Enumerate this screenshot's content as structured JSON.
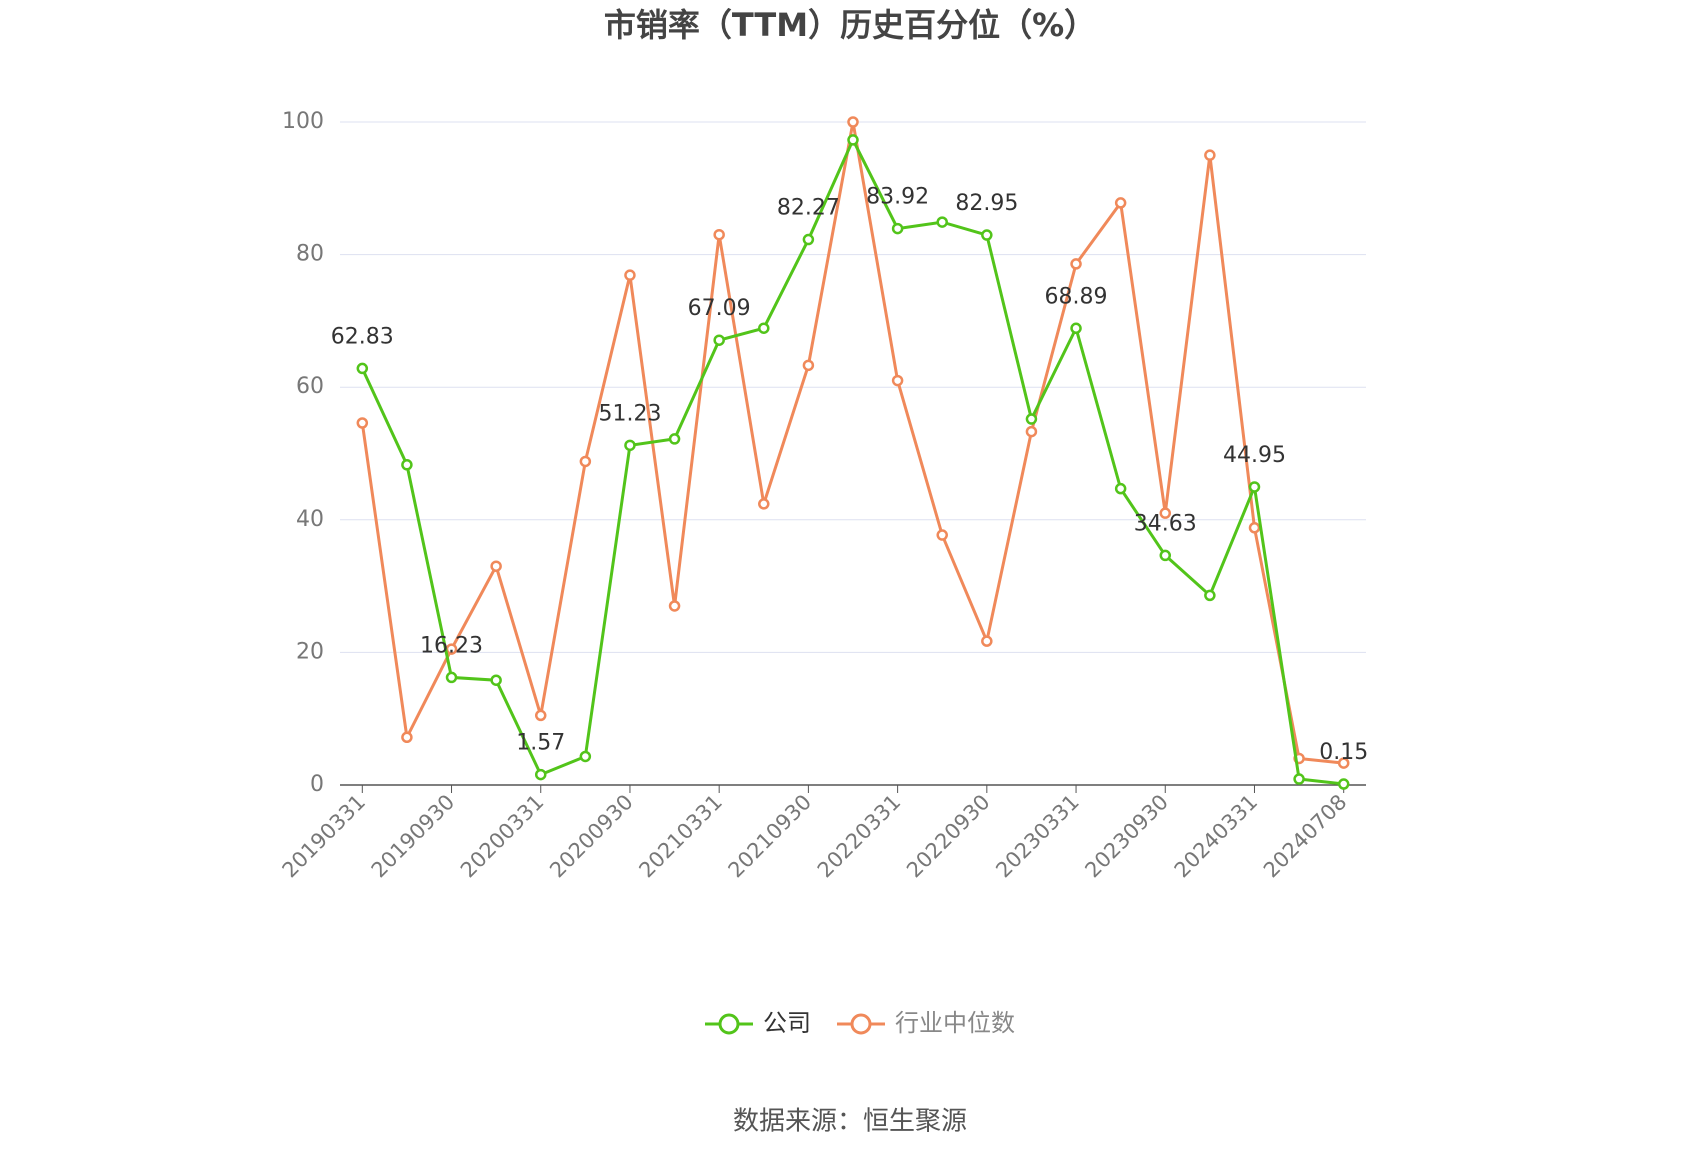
{
  "chart_data": {
    "type": "line",
    "title": "市销率（TTM）历史百分位（%）",
    "categories": [
      "20190331",
      null,
      "20190930",
      null,
      "20200331",
      null,
      "20200930",
      null,
      "20210331",
      null,
      "20210930",
      null,
      "20220331",
      null,
      "20220930",
      null,
      "20230331",
      null,
      "20230930",
      null,
      "20240331",
      null,
      "20240708"
    ],
    "series": [
      {
        "name": "公司",
        "color": "#52c41a",
        "values": [
          62.83,
          48.3,
          16.23,
          15.8,
          1.57,
          4.3,
          51.23,
          52.2,
          67.09,
          68.9,
          82.27,
          97.3,
          83.92,
          84.9,
          82.95,
          55.2,
          68.89,
          44.7,
          34.63,
          28.6,
          44.95,
          0.9,
          0.15
        ]
      },
      {
        "name": "行业中位数",
        "color": "#f0895a",
        "values": [
          54.6,
          7.2,
          20.5,
          33,
          10.5,
          48.8,
          76.9,
          27,
          83,
          42.4,
          63.3,
          100,
          61,
          37.7,
          21.7,
          53.3,
          78.6,
          87.8,
          41,
          95,
          38.8,
          4,
          3.3
        ]
      }
    ],
    "ylim": [
      0,
      100
    ],
    "yticks": [
      0,
      20,
      40,
      60,
      80,
      100
    ],
    "grid": true,
    "legend": "bottom",
    "source": "数据来源：恒生聚源"
  }
}
